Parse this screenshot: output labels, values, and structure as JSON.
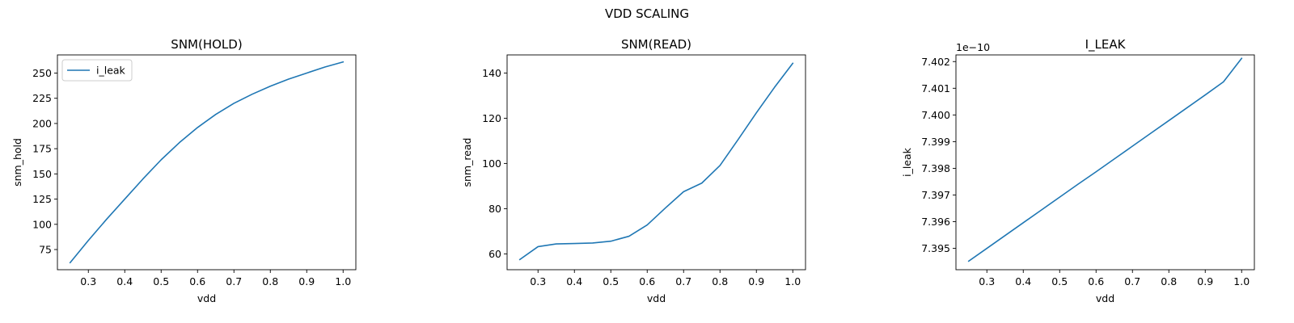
{
  "figure_title": "VDD SCALING",
  "chart_data": [
    {
      "type": "line",
      "title": "SNM(HOLD)",
      "xlabel": "vdd",
      "ylabel": "snm_hold",
      "xlim": [
        0.215,
        1.035
      ],
      "ylim": [
        55,
        268
      ],
      "xticks": [
        0.3,
        0.4,
        0.5,
        0.6,
        0.7,
        0.8,
        0.9,
        1.0
      ],
      "xtick_labels": [
        "0.3",
        "0.4",
        "0.5",
        "0.6",
        "0.7",
        "0.8",
        "0.9",
        "1.0"
      ],
      "yticks": [
        75,
        100,
        125,
        150,
        175,
        200,
        225,
        250
      ],
      "ytick_labels": [
        "75",
        "100",
        "125",
        "150",
        "175",
        "200",
        "225",
        "250"
      ],
      "legend": {
        "position": "upper-left",
        "entries": [
          "i_leak"
        ]
      },
      "series": [
        {
          "name": "i_leak",
          "color": "#1f77b4",
          "x": [
            0.25,
            0.3,
            0.35,
            0.4,
            0.45,
            0.5,
            0.55,
            0.6,
            0.65,
            0.7,
            0.75,
            0.8,
            0.85,
            0.9,
            0.95,
            1.0
          ],
          "y": [
            62,
            84,
            105,
            125,
            145,
            164,
            181,
            196,
            209,
            220,
            229,
            237,
            244,
            250,
            256,
            261
          ]
        }
      ]
    },
    {
      "type": "line",
      "title": "SNM(READ)",
      "xlabel": "vdd",
      "ylabel": "snm_read",
      "xlim": [
        0.215,
        1.035
      ],
      "ylim": [
        53,
        148
      ],
      "xticks": [
        0.3,
        0.4,
        0.5,
        0.6,
        0.7,
        0.8,
        0.9,
        1.0
      ],
      "xtick_labels": [
        "0.3",
        "0.4",
        "0.5",
        "0.6",
        "0.7",
        "0.8",
        "0.9",
        "1.0"
      ],
      "yticks": [
        60,
        80,
        100,
        120,
        140
      ],
      "ytick_labels": [
        "60",
        "80",
        "100",
        "120",
        "140"
      ],
      "series": [
        {
          "color": "#1f77b4",
          "x": [
            0.25,
            0.3,
            0.35,
            0.4,
            0.45,
            0.5,
            0.55,
            0.6,
            0.65,
            0.7,
            0.75,
            0.8,
            0.85,
            0.9,
            0.95,
            1.0
          ],
          "y": [
            57.5,
            63.2,
            64.4,
            64.6,
            64.8,
            65.6,
            67.8,
            72.8,
            80.3,
            87.5,
            91.3,
            99.1,
            110.6,
            122.4,
            133.7,
            144.3
          ]
        }
      ]
    },
    {
      "type": "line",
      "title": "I_LEAK",
      "xlabel": "vdd",
      "ylabel": "i_leak",
      "offset_text": "1e−10",
      "xlim": [
        0.215,
        1.035
      ],
      "ylim": [
        7.3942,
        7.40225
      ],
      "xticks": [
        0.3,
        0.4,
        0.5,
        0.6,
        0.7,
        0.8,
        0.9,
        1.0
      ],
      "xtick_labels": [
        "0.3",
        "0.4",
        "0.5",
        "0.6",
        "0.7",
        "0.8",
        "0.9",
        "1.0"
      ],
      "yticks": [
        7.395,
        7.396,
        7.397,
        7.398,
        7.399,
        7.4,
        7.401,
        7.402
      ],
      "ytick_labels": [
        "7.395",
        "7.396",
        "7.397",
        "7.398",
        "7.399",
        "7.400",
        "7.401",
        "7.402"
      ],
      "series": [
        {
          "color": "#1f77b4",
          "x": [
            0.25,
            0.3,
            0.35,
            0.4,
            0.45,
            0.5,
            0.55,
            0.6,
            0.65,
            0.7,
            0.75,
            0.8,
            0.85,
            0.9,
            0.95,
            1.0
          ],
          "y": [
            7.39452,
            7.395,
            7.39548,
            7.39596,
            7.39644,
            7.39692,
            7.3974,
            7.39787,
            7.39835,
            7.39883,
            7.39931,
            7.39979,
            7.40027,
            7.40075,
            7.40124,
            7.40212
          ]
        }
      ]
    }
  ]
}
